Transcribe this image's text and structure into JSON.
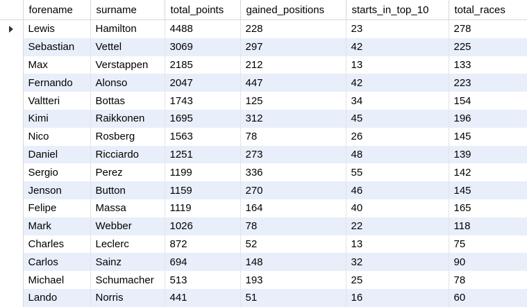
{
  "columns": [
    "forename",
    "surname",
    "total_points",
    "gained_positions",
    "starts_in_top_10",
    "total_races"
  ],
  "rows": [
    [
      "Lewis",
      "Hamilton",
      "4488",
      "228",
      "23",
      "278"
    ],
    [
      "Sebastian",
      "Vettel",
      "3069",
      "297",
      "42",
      "225"
    ],
    [
      "Max",
      "Verstappen",
      "2185",
      "212",
      "13",
      "133"
    ],
    [
      "Fernando",
      "Alonso",
      "2047",
      "447",
      "42",
      "223"
    ],
    [
      "Valtteri",
      "Bottas",
      "1743",
      "125",
      "34",
      "154"
    ],
    [
      "Kimi",
      "Raikkonen",
      "1695",
      "312",
      "45",
      "196"
    ],
    [
      "Nico",
      "Rosberg",
      "1563",
      "78",
      "26",
      "145"
    ],
    [
      "Daniel",
      "Ricciardo",
      "1251",
      "273",
      "48",
      "139"
    ],
    [
      "Sergio",
      "Perez",
      "1199",
      "336",
      "55",
      "142"
    ],
    [
      "Jenson",
      "Button",
      "1159",
      "270",
      "46",
      "145"
    ],
    [
      "Felipe",
      "Massa",
      "1119",
      "164",
      "40",
      "165"
    ],
    [
      "Mark",
      "Webber",
      "1026",
      "78",
      "22",
      "118"
    ],
    [
      "Charles",
      "Leclerc",
      "872",
      "52",
      "13",
      "75"
    ],
    [
      "Carlos",
      "Sainz",
      "694",
      "148",
      "32",
      "90"
    ],
    [
      "Michael",
      "Schumacher",
      "513",
      "193",
      "25",
      "78"
    ],
    [
      "Lando",
      "Norris",
      "441",
      "51",
      "16",
      "60"
    ]
  ],
  "current_row_index": 0,
  "indicator_icon": "row-pointer-icon",
  "colors": {
    "row_stripe": "#e8effa",
    "grid_line": "#d6d6d6"
  }
}
